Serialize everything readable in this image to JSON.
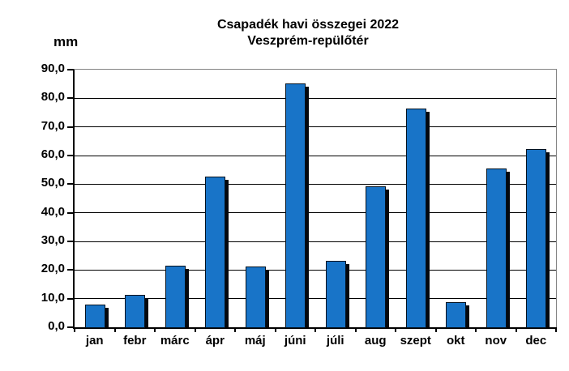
{
  "header": {
    "title_line1": "Csapadék havi összegei 2022",
    "title_line2": "Veszprém-repülőtér",
    "ylabel": "mm"
  },
  "chart_data": {
    "type": "bar",
    "title": "Csapadék havi összegei 2022 Veszprém-repülőtér",
    "xlabel": "",
    "ylabel": "mm",
    "categories": [
      "jan",
      "febr",
      "márc",
      "ápr",
      "máj",
      "júni",
      "júli",
      "aug",
      "szept",
      "okt",
      "nov",
      "dec"
    ],
    "values": [
      7.8,
      11.4,
      21.4,
      52.6,
      21.2,
      85.3,
      23.2,
      49.2,
      76.3,
      8.8,
      55.6,
      62.2
    ],
    "ylim": [
      0,
      90
    ],
    "ytick_step": 10,
    "ytick_labels": [
      "0,0",
      "10,0",
      "20,0",
      "30,0",
      "40,0",
      "50,0",
      "60,0",
      "70,0",
      "80,0",
      "90,0"
    ],
    "grid": "horizontal",
    "legend": "none",
    "bar_color": "#1874C8",
    "bar_border_color": "#04121f",
    "bar_shadow_color": "#04080f",
    "gridline_color": "#000000",
    "frame_color": "#848484"
  }
}
